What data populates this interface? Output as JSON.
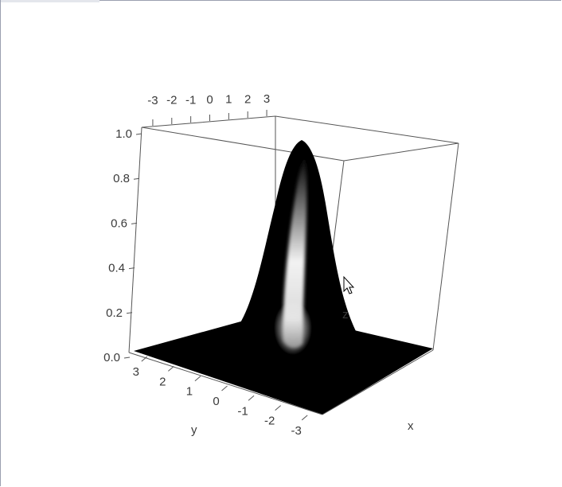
{
  "chart_data": {
    "type": "surface",
    "title": "",
    "function": "z = exp(-(x^2 + y^2))",
    "xlabel": "x",
    "ylabel": "y",
    "zlabel": "z",
    "xlim": [
      -3.5,
      3.5
    ],
    "ylim": [
      -3.5,
      3.5
    ],
    "zlim": [
      0,
      1
    ],
    "x_ticks": [
      -3,
      -2,
      -1,
      0,
      1,
      2,
      3
    ],
    "y_ticks": [
      3,
      2,
      1,
      0,
      -1,
      -2,
      -3
    ],
    "z_ticks": [
      0.0,
      0.2,
      0.4,
      0.6,
      0.8,
      1.0
    ],
    "x_tick_labels": [
      "-3",
      "-2",
      "-1",
      "0",
      "1",
      "2",
      "3"
    ],
    "y_tick_labels": [
      "3",
      "2",
      "1",
      "0",
      "-1",
      "-2",
      "-3"
    ],
    "z_tick_labels": [
      "0.0",
      "0.2",
      "0.4",
      "0.6",
      "0.8",
      "1.0"
    ],
    "peak": {
      "x": 0,
      "y": 0,
      "z": 1.0
    },
    "surface_color": "#000000",
    "highlight_color": "#ffffff",
    "grid": false,
    "box": true
  },
  "cursor": {
    "icon": "arrow-cursor-icon"
  }
}
